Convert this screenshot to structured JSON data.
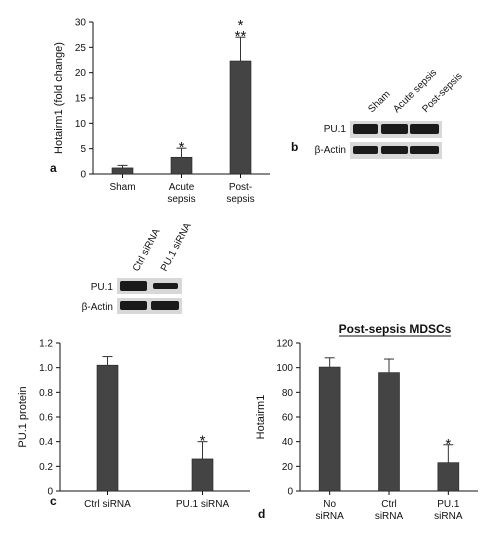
{
  "colors": {
    "bar": "#444444",
    "axis": "#111111",
    "band": "#1a1a1a"
  },
  "panel_labels": {
    "a": "a",
    "b": "b",
    "c": "c",
    "d": "d"
  },
  "blot_b": {
    "columns": [
      "Sham",
      "Acute sepsis",
      "Post-sepsis"
    ],
    "rows": [
      "PU.1",
      "β-Actin"
    ]
  },
  "blot_c": {
    "columns": [
      "Ctrl siRNA",
      "PU.1 siRNA"
    ],
    "rows": [
      "PU.1",
      "β-Actin"
    ]
  },
  "chart_data": [
    {
      "panel": "a",
      "type": "bar",
      "ylabel": "Hotairm1 (fold change)",
      "xlabel": "",
      "categories": [
        [
          "Sham"
        ],
        [
          "Acute",
          "sepsis"
        ],
        [
          "Post-",
          "sepsis"
        ]
      ],
      "values": [
        1.2,
        3.3,
        22.3
      ],
      "errors": [
        0.5,
        1.8,
        4.7
      ],
      "significance": [
        "",
        "*",
        "*\n**"
      ],
      "ylim": [
        0,
        30
      ],
      "yticks": [
        0,
        5,
        10,
        15,
        20,
        25,
        30
      ],
      "grid": false
    },
    {
      "panel": "c",
      "type": "bar",
      "ylabel": "PU.1 protein",
      "xlabel": "",
      "categories": [
        [
          "Ctrl siRNA"
        ],
        [
          "PU.1 siRNA"
        ]
      ],
      "values": [
        1.02,
        0.26
      ],
      "errors": [
        0.07,
        0.14
      ],
      "significance": [
        "",
        "*"
      ],
      "ylim": [
        0,
        1.2
      ],
      "yticks": [
        "0",
        "0.2",
        "0.4",
        "0.6",
        "0.8",
        "1.0",
        "1.2"
      ],
      "grid": false
    },
    {
      "panel": "d",
      "type": "bar",
      "title": "Post-sepsis MDSCs",
      "ylabel": "Hotairm1",
      "xlabel": "",
      "categories": [
        [
          "No",
          "siRNA"
        ],
        [
          "Ctrl",
          "siRNA"
        ],
        [
          "PU.1",
          "siRNA"
        ]
      ],
      "values": [
        100.5,
        96,
        23
      ],
      "errors": [
        7.5,
        11,
        14.5
      ],
      "significance": [
        "",
        "",
        "*"
      ],
      "ylim": [
        0,
        120
      ],
      "yticks": [
        0,
        20,
        40,
        60,
        80,
        100,
        120
      ],
      "grid": false
    }
  ]
}
